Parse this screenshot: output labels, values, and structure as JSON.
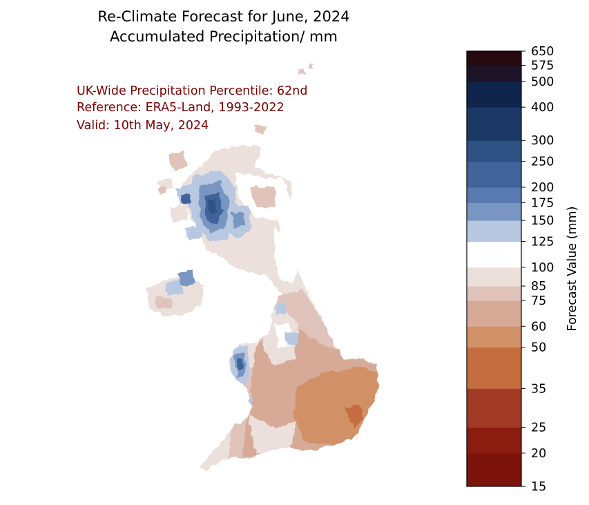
{
  "title_line1": "Re-Climate Forecast for June, 2024",
  "title_line2": "Accumulated Precipitation/ mm",
  "annotations": {
    "percentile": "UK-Wide Precipitation Percentile: 62nd",
    "reference": "Reference: ERA5-Land, 1993-2022",
    "valid": "Valid: 10th May, 2024"
  },
  "colorbar": {
    "label": "Forecast Value (mm)",
    "levels": [
      15,
      20,
      25,
      35,
      50,
      60,
      75,
      85,
      100,
      125,
      150,
      175,
      200,
      250,
      300,
      400,
      500,
      575,
      650
    ],
    "colors": [
      "#7d140c",
      "#8a1c10",
      "#a03a25",
      "#c46e40",
      "#d29066",
      "#d6aa96",
      "#e0c4bb",
      "#ebe0db",
      "#ffffff",
      "#b8c8e0",
      "#7996c2",
      "#587ab0",
      "#41649a",
      "#2f5284",
      "#1c3966",
      "#0f254b",
      "#1f1328",
      "#270910"
    ]
  },
  "chart_data": {
    "type": "heatmap",
    "region": "UK",
    "value_range": [
      15,
      650
    ],
    "units": "mm"
  }
}
